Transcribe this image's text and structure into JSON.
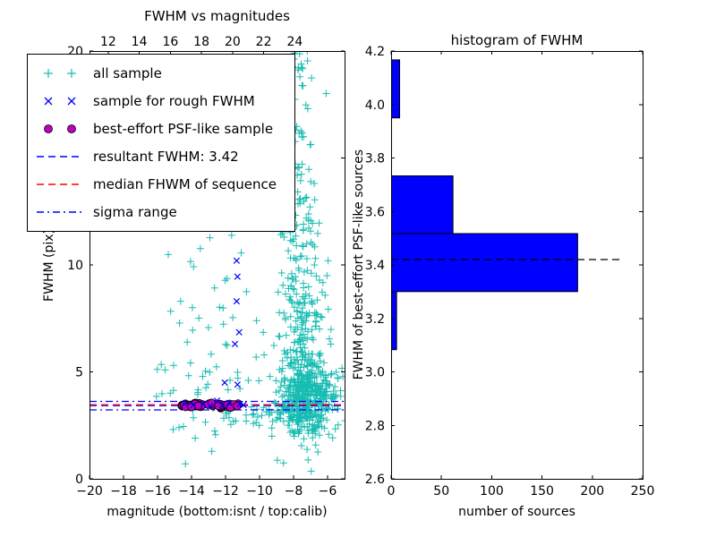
{
  "chart_data": [
    {
      "type": "scatter",
      "title": "FWHM vs magnitudes",
      "xlabel": "magnitude (bottom:isnt / top:calib)",
      "ylabel": "FWHM (pix)",
      "xlim": [
        -20,
        -5
      ],
      "ylim": [
        0,
        20
      ],
      "xticks": [
        {
          "v": -20,
          "label": "−20"
        },
        {
          "v": -18,
          "label": "−18"
        },
        {
          "v": -16,
          "label": "−16"
        },
        {
          "v": -14,
          "label": "−14"
        },
        {
          "v": -12,
          "label": "−12"
        },
        {
          "v": -10,
          "label": "−10"
        },
        {
          "v": -8,
          "label": "−8"
        },
        {
          "v": -6,
          "label": "−6"
        }
      ],
      "yticks": [
        {
          "v": 0,
          "label": "0"
        },
        {
          "v": 5,
          "label": "5"
        },
        {
          "v": 10,
          "label": "10"
        },
        {
          "v": 15,
          "label": "15"
        },
        {
          "v": 20,
          "label": "20"
        }
      ],
      "top_axis": {
        "lim": [
          10.8,
          27.2
        ],
        "ticks": [
          {
            "v": 12,
            "label": "12"
          },
          {
            "v": 14,
            "label": "14"
          },
          {
            "v": 16,
            "label": "16"
          },
          {
            "v": 18,
            "label": "18"
          },
          {
            "v": 20,
            "label": "20"
          },
          {
            "v": 22,
            "label": "22"
          },
          {
            "v": 24,
            "label": "24"
          }
        ]
      },
      "series": [
        {
          "name": "all sample",
          "marker": "plus",
          "color": "#17bcb2",
          "clusters": [
            [
              420,
              -7.3,
              0.85,
              3.8,
              0.8
            ],
            [
              150,
              -7.4,
              0.8,
              6.5,
              1.6
            ],
            [
              80,
              -7.6,
              0.7,
              10.5,
              2.2
            ],
            [
              55,
              -7.8,
              0.6,
              15.5,
              2.6
            ],
            [
              30,
              -8.0,
              0.5,
              19.5,
              1.2
            ],
            [
              40,
              -12.6,
              1.6,
              7.5,
              2.8
            ],
            [
              26,
              -14.3,
              1.3,
              4.3,
              1.2
            ],
            [
              34,
              -10.6,
              1.8,
              2.8,
              0.35
            ],
            [
              8,
              -13.2,
              0.4,
              11.5,
              1.3
            ],
            [
              12,
              -6.3,
              0.5,
              2.6,
              0.3
            ],
            [
              14,
              -5.8,
              0.4,
              3.4,
              0.9
            ],
            [
              6,
              -7.5,
              1.0,
              1.2,
              0.5
            ]
          ]
        },
        {
          "name": "sample for rough FWHM",
          "marker": "x",
          "color": "#0000ff",
          "points": [
            [
              -11.35,
              10.2
            ],
            [
              -11.3,
              9.45
            ],
            [
              -11.35,
              8.3
            ],
            [
              -11.2,
              6.85
            ],
            [
              -11.45,
              6.3
            ],
            [
              -12.05,
              4.5
            ],
            [
              -11.3,
              4.4
            ],
            [
              -12.5,
              3.65
            ],
            [
              -13.3,
              3.5
            ],
            [
              -12.2,
              3.45
            ],
            [
              -11.8,
              3.55
            ],
            [
              -11.15,
              3.5
            ],
            [
              -10.95,
              3.45
            ],
            [
              -12.9,
              3.4
            ],
            [
              -13.9,
              3.45
            ],
            [
              -14.4,
              3.5
            ]
          ]
        },
        {
          "name": "best-effort PSF-like sample",
          "marker": "circle",
          "color": "#bf00bf",
          "edge": "#000000",
          "band": {
            "n": 55,
            "x_range": [
              -14.6,
              -11.25
            ],
            "y_mean": 3.44,
            "y_sigma": 0.055
          }
        }
      ],
      "lines": [
        {
          "name": "resultant FWHM",
          "y": 3.42,
          "style": "dashed",
          "color": "#0000ff"
        },
        {
          "name": "median FHWM of sequence",
          "y": 3.47,
          "style": "dashed",
          "color": "#ff0000"
        },
        {
          "name": "sigma range upper",
          "y": 3.62,
          "style": "dashdot",
          "color": "#0000ff"
        },
        {
          "name": "sigma range lower",
          "y": 3.22,
          "style": "dashdot",
          "color": "#0000ff"
        }
      ],
      "legend": {
        "items": [
          {
            "label": "all sample",
            "type": "scatter",
            "marker": "plus",
            "color": "#17bcb2"
          },
          {
            "label": "sample for rough FWHM",
            "type": "scatter",
            "marker": "x",
            "color": "#0000ff"
          },
          {
            "label": "best-effort PSF-like sample",
            "type": "scatter",
            "marker": "circle",
            "color": "#bf00bf",
            "edge": "#000000"
          },
          {
            "label": "resultant FWHM: 3.42",
            "type": "line",
            "style": "dashed",
            "color": "#0000ff"
          },
          {
            "label": "median FHWM of sequence",
            "type": "line",
            "style": "dashed",
            "color": "#ff0000"
          },
          {
            "label": "sigma range",
            "type": "line",
            "style": "dashdot",
            "color": "#0000ff"
          }
        ]
      }
    },
    {
      "type": "bar",
      "orientation": "horizontal",
      "title": "histogram of FWHM",
      "xlabel": "number of sources",
      "ylabel": "FWHM of best-effort PSF-like sources",
      "xlim": [
        0,
        250
      ],
      "ylim": [
        2.6,
        4.2
      ],
      "xticks": [
        {
          "v": 0,
          "label": "0"
        },
        {
          "v": 50,
          "label": "50"
        },
        {
          "v": 100,
          "label": "100"
        },
        {
          "v": 150,
          "label": "150"
        },
        {
          "v": 200,
          "label": "200"
        },
        {
          "v": 250,
          "label": "250"
        }
      ],
      "yticks": [
        {
          "v": 2.6,
          "label": "2.6"
        },
        {
          "v": 2.8,
          "label": "2.8"
        },
        {
          "v": 3.0,
          "label": "3.0"
        },
        {
          "v": 3.2,
          "label": "3.2"
        },
        {
          "v": 3.4,
          "label": "3.4"
        },
        {
          "v": 3.6,
          "label": "3.6"
        },
        {
          "v": 3.8,
          "label": "3.8"
        },
        {
          "v": 4.0,
          "label": "4.0"
        },
        {
          "v": 4.2,
          "label": "4.2"
        }
      ],
      "bar_color": "#0000ff",
      "bar_edge": "#000000",
      "bins": {
        "edges": [
          2.65,
          2.867,
          3.083,
          3.3,
          3.517,
          3.733,
          3.95,
          4.167
        ],
        "counts": [
          0,
          0,
          5,
          185,
          61,
          0,
          8
        ]
      },
      "median_line": {
        "y": 3.42,
        "x_start": 0,
        "x_end": 228,
        "style": "dashed",
        "color": "#000000"
      }
    }
  ]
}
